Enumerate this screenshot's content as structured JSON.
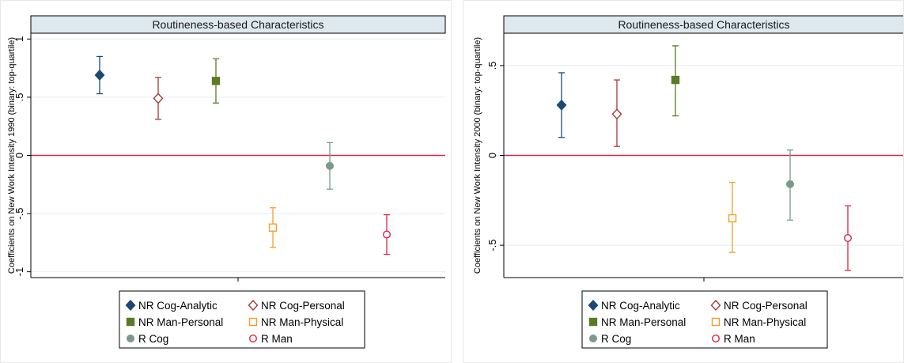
{
  "chart_data": [
    {
      "type": "scatter",
      "title": "Routineness-based Characteristics",
      "xlabel": "",
      "ylabel": "Coefficients on New Work Intensity 1990 (binary: top-quartile)",
      "ylim": [
        -1.05,
        1.05
      ],
      "yticks": [
        {
          "value": 1,
          "label": "1"
        },
        {
          "value": 0.5,
          "label": ".5"
        },
        {
          "value": 0,
          "label": "0"
        },
        {
          "value": -0.5,
          "label": "-.5"
        },
        {
          "value": -1,
          "label": "-1"
        }
      ],
      "grid": true,
      "reference_line": 0,
      "series": [
        {
          "name": "NR Cog-Analytic",
          "marker": "diamond-filled",
          "color": "#1a4a72",
          "x": 1,
          "y": 0.69,
          "ci": [
            0.53,
            0.85
          ]
        },
        {
          "name": "NR Cog-Personal",
          "marker": "diamond-open",
          "color": "#a23b3b",
          "x": 2,
          "y": 0.49,
          "ci": [
            0.31,
            0.67
          ]
        },
        {
          "name": "NR Man-Personal",
          "marker": "square-filled",
          "color": "#5b7a24",
          "x": 3,
          "y": 0.64,
          "ci": [
            0.45,
            0.83
          ]
        },
        {
          "name": "NR Man-Physical",
          "marker": "square-open",
          "color": "#f0a028",
          "x": 4,
          "y": -0.62,
          "ci": [
            -0.79,
            -0.45
          ]
        },
        {
          "name": "R Cog",
          "marker": "circle-filled",
          "color": "#7a9a8a",
          "x": 5,
          "y": -0.09,
          "ci": [
            -0.29,
            0.11
          ]
        },
        {
          "name": "R Man",
          "marker": "circle-open",
          "color": "#d8264a",
          "x": 6,
          "y": -0.68,
          "ci": [
            -0.85,
            -0.51
          ]
        }
      ],
      "legend": {
        "position": "bottom",
        "columns": 2
      }
    },
    {
      "type": "scatter",
      "title": "Routineness-based Characteristics",
      "xlabel": "",
      "ylabel": "Coefficients on New Work Intensity 2000 (binary: top-quartile)",
      "ylim": [
        -0.68,
        0.68
      ],
      "yticks": [
        {
          "value": 0.5,
          "label": ".5"
        },
        {
          "value": 0,
          "label": "0"
        },
        {
          "value": -0.5,
          "label": "-.5"
        }
      ],
      "grid": true,
      "reference_line": 0,
      "series": [
        {
          "name": "NR Cog-Analytic",
          "marker": "diamond-filled",
          "color": "#1a4a72",
          "x": 1,
          "y": 0.28,
          "ci": [
            0.1,
            0.46
          ]
        },
        {
          "name": "NR Cog-Personal",
          "marker": "diamond-open",
          "color": "#a23b3b",
          "x": 2,
          "y": 0.23,
          "ci": [
            0.05,
            0.42
          ]
        },
        {
          "name": "NR Man-Personal",
          "marker": "square-filled",
          "color": "#5b7a24",
          "x": 3,
          "y": 0.42,
          "ci": [
            0.22,
            0.61
          ]
        },
        {
          "name": "NR Man-Physical",
          "marker": "square-open",
          "color": "#f0a028",
          "x": 4,
          "y": -0.35,
          "ci": [
            -0.54,
            -0.15
          ]
        },
        {
          "name": "R Cog",
          "marker": "circle-filled",
          "color": "#7a9a8a",
          "x": 5,
          "y": -0.16,
          "ci": [
            -0.36,
            0.03
          ]
        },
        {
          "name": "R Man",
          "marker": "circle-open",
          "color": "#d8264a",
          "x": 6,
          "y": -0.46,
          "ci": [
            -0.64,
            -0.28
          ]
        }
      ],
      "legend": {
        "position": "bottom",
        "columns": 2
      }
    }
  ],
  "colors": {
    "title_bar_fill": "#dde8ef",
    "zero_line": "#d8264a",
    "grid": "#e6ecef",
    "axis": "#000000"
  }
}
